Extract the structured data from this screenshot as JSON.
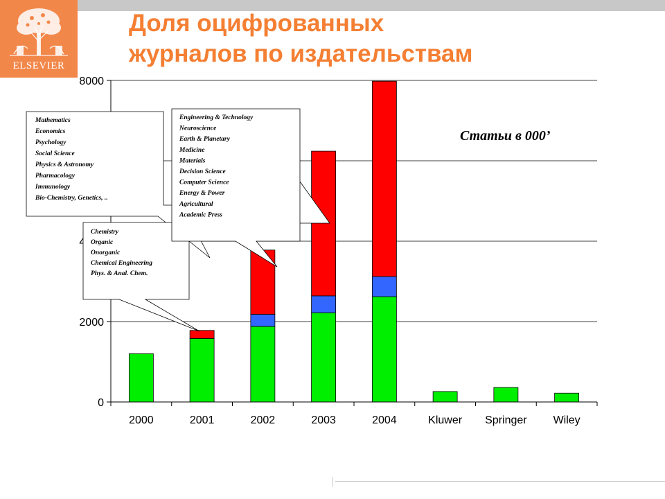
{
  "header": {
    "logo_text": "ELSEVIER",
    "title_lines": [
      "Доля оцифрованных",
      "журналов по издательствам"
    ]
  },
  "colors": {
    "header_band": "#c8c8c8",
    "logo_background": "#f2874a",
    "title": "#f47f33",
    "series_green": "#00ee00",
    "series_blue": "#3366ff",
    "series_red": "#ff0000"
  },
  "chart_data": {
    "type": "bar",
    "stacked": true,
    "categories": [
      "2000",
      "2001",
      "2002",
      "2003",
      "2004",
      "Kluwer",
      "Springer",
      "Wiley"
    ],
    "series": [
      {
        "color": "#00ee00",
        "values": [
          1200,
          1580,
          1880,
          2220,
          2620,
          260,
          360,
          220
        ]
      },
      {
        "color": "#3366ff",
        "values": [
          0,
          0,
          300,
          420,
          500,
          0,
          0,
          0
        ]
      },
      {
        "color": "#ff0000",
        "values": [
          0,
          200,
          1600,
          3600,
          4860,
          0,
          0,
          0
        ]
      }
    ],
    "ylim": [
      0,
      8000
    ],
    "yticks": [
      "0",
      "2000",
      "4000",
      "6000",
      "8000"
    ],
    "grid": true,
    "annotation": "Статьи в 000’",
    "callouts": [
      {
        "lines": [
          "Mathematics",
          "Economics",
          "Psychology",
          "Social Science",
          "Physics & Astronomy",
          "Pharmacology",
          "Immunology",
          "Bio-Chemistry, Genetics, .."
        ]
      },
      {
        "lines": [
          "Engineering & Technology",
          "Neuroscience",
          "Earth & Planetary",
          "Medicine",
          "Materials",
          "Decision Science",
          "Computer Science",
          "Energy & Power",
          "Agricultural",
          "Academic Press"
        ]
      },
      {
        "lines": [
          "Chemistry",
          "Organic",
          "Onorganic",
          "Chemical Engineering",
          "Phys. & Anal. Chem."
        ]
      }
    ]
  }
}
